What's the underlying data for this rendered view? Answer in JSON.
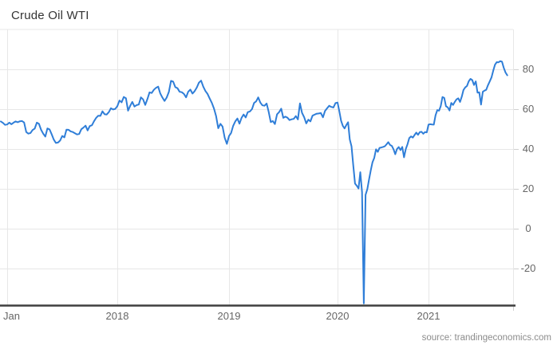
{
  "header": {
    "title": "Crude Oil WTI"
  },
  "footer": {
    "source": "source: trandingeconomics.com"
  },
  "chart_data": {
    "type": "line",
    "title": "Crude Oil WTI",
    "x_tick_labels": [
      "Jan",
      "2018",
      "2019",
      "2020",
      "2021"
    ],
    "y_tick_labels": [
      "80",
      "60",
      "40",
      "20",
      "0",
      "-20"
    ],
    "y_tick_values": [
      80,
      60,
      40,
      20,
      0,
      -20
    ],
    "ylim": [
      -38.5,
      100
    ],
    "x_range": [
      "Dec 2016",
      "Nov 2021"
    ],
    "grid": true,
    "legend": "none",
    "line_color": "#2f7ed8",
    "notable_points": {
      "oct_2018_peak": 74.3,
      "dec_2018_low": 42.5,
      "apr_2020_negative_spike": -37.6,
      "oct_2021_peak": 84.1,
      "last_value": 77.0
    },
    "series": [
      {
        "name": "Crude Oil WTI",
        "x_start_decimal_year": 2016.9423,
        "x_step_decimal_years": 0.0192308,
        "values": [
          53.8,
          53.1,
          52.1,
          52.3,
          53.2,
          52.4,
          53.2,
          53.8,
          53.4,
          53.9,
          54.0,
          53.3,
          48.5,
          47.7,
          48.0,
          49.5,
          50.2,
          53.2,
          52.6,
          49.6,
          47.7,
          46.2,
          50.3,
          49.8,
          47.4,
          44.7,
          43.0,
          43.2,
          44.2,
          46.5,
          45.8,
          49.7,
          49.6,
          48.8,
          48.5,
          47.9,
          47.3,
          47.5,
          49.9,
          50.7,
          51.7,
          49.3,
          51.5,
          51.9,
          53.9,
          55.6,
          56.7,
          56.6,
          58.9,
          57.4,
          57.3,
          58.5,
          60.4,
          59.8,
          60.1,
          61.4,
          64.3,
          63.4,
          66.1,
          65.5,
          59.2,
          61.7,
          63.6,
          61.3,
          62.0,
          62.3,
          65.9,
          64.9,
          62.1,
          65.0,
          68.4,
          68.1,
          69.7,
          70.7,
          71.3,
          67.9,
          65.8,
          64.1,
          65.8,
          68.6,
          74.2,
          73.8,
          71.0,
          70.5,
          68.7,
          68.5,
          67.6,
          65.9,
          68.7,
          69.8,
          67.8,
          69.0,
          70.8,
          73.3,
          74.3,
          71.3,
          69.1,
          67.6,
          65.3,
          63.1,
          60.2,
          56.5,
          50.4,
          52.6,
          51.2,
          45.6,
          42.5,
          46.5,
          48.0,
          51.6,
          53.8,
          55.3,
          52.7,
          55.6,
          57.3,
          55.8,
          58.5,
          58.8,
          60.0,
          63.1,
          63.9,
          65.9,
          63.3,
          61.9,
          61.7,
          62.8,
          58.6,
          53.5,
          54.0,
          52.5,
          57.4,
          58.5,
          60.2,
          55.6,
          56.2,
          55.7,
          54.5,
          54.9,
          55.1,
          56.5,
          54.8,
          62.9,
          58.1,
          55.9,
          52.8,
          54.7,
          53.8,
          56.7,
          57.2,
          57.7,
          57.8,
          58.0,
          55.9,
          59.1,
          60.4,
          61.7,
          61.1,
          60.8,
          63.0,
          63.3,
          59.0,
          54.2,
          51.6,
          50.3,
          52.0,
          53.4,
          44.8,
          41.3,
          31.7,
          22.6,
          21.5,
          20.1,
          28.3,
          18.3,
          -37.6,
          16.9,
          19.8,
          24.7,
          29.4,
          33.3,
          35.5,
          39.8,
          38.5,
          40.5,
          40.7,
          41.0,
          41.3,
          42.3,
          43.4,
          42.0,
          41.5,
          39.8,
          37.3,
          40.0,
          40.9,
          39.4,
          41.0,
          35.8,
          39.9,
          42.4,
          45.5,
          46.3,
          45.7,
          47.0,
          48.2,
          47.1,
          48.4,
          48.6,
          47.6,
          48.5,
          48.3,
          52.2,
          52.4,
          52.3,
          52.2,
          56.9,
          59.5,
          59.2,
          61.5,
          66.1,
          65.6,
          61.4,
          60.9,
          59.3,
          63.1,
          62.1,
          63.6,
          64.9,
          65.4,
          63.6,
          66.3,
          69.6,
          70.9,
          71.6,
          74.0,
          75.2,
          74.6,
          72.1,
          73.9,
          68.3,
          68.4,
          62.3,
          68.7,
          69.3,
          69.7,
          72.0,
          73.9,
          75.9,
          79.3,
          82.3,
          83.6,
          83.5,
          84.1,
          83.8,
          80.7,
          78.4,
          77.0
        ]
      }
    ]
  }
}
